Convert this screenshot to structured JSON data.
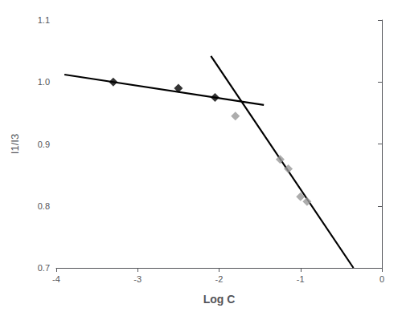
{
  "chart_data": {
    "type": "scatter",
    "title": "",
    "xlabel": "Log C",
    "ylabel": "I1/I3",
    "xlim": [
      -4,
      0
    ],
    "ylim": [
      0.7,
      1.1
    ],
    "xticks": [
      -4,
      -3,
      -2,
      -1,
      0
    ],
    "yticks": [
      0.7,
      0.8,
      0.9,
      {
        "value": 1.0,
        "label": "1.0"
      },
      1.1
    ],
    "grid": false,
    "series": [
      {
        "type": "line",
        "color": "#000000",
        "x": [
          -3.9,
          -1.45
        ],
        "values": [
          1.012,
          0.963
        ]
      },
      {
        "type": "line",
        "color": "#000000",
        "x": [
          -2.1,
          -0.35
        ],
        "values": [
          1.042,
          0.7
        ]
      },
      {
        "type": "scatter",
        "marker": "diamond",
        "color": "#000000",
        "x": [
          -3.3,
          -2.5,
          -2.05
        ],
        "values": [
          1.0,
          0.99,
          0.975
        ]
      },
      {
        "type": "scatter",
        "marker": "diamond",
        "color": "#999999",
        "x": [
          -1.8,
          -1.25,
          -1.15,
          -1.0,
          -0.92
        ],
        "values": [
          0.945,
          0.875,
          0.86,
          0.815,
          0.807
        ]
      }
    ]
  }
}
